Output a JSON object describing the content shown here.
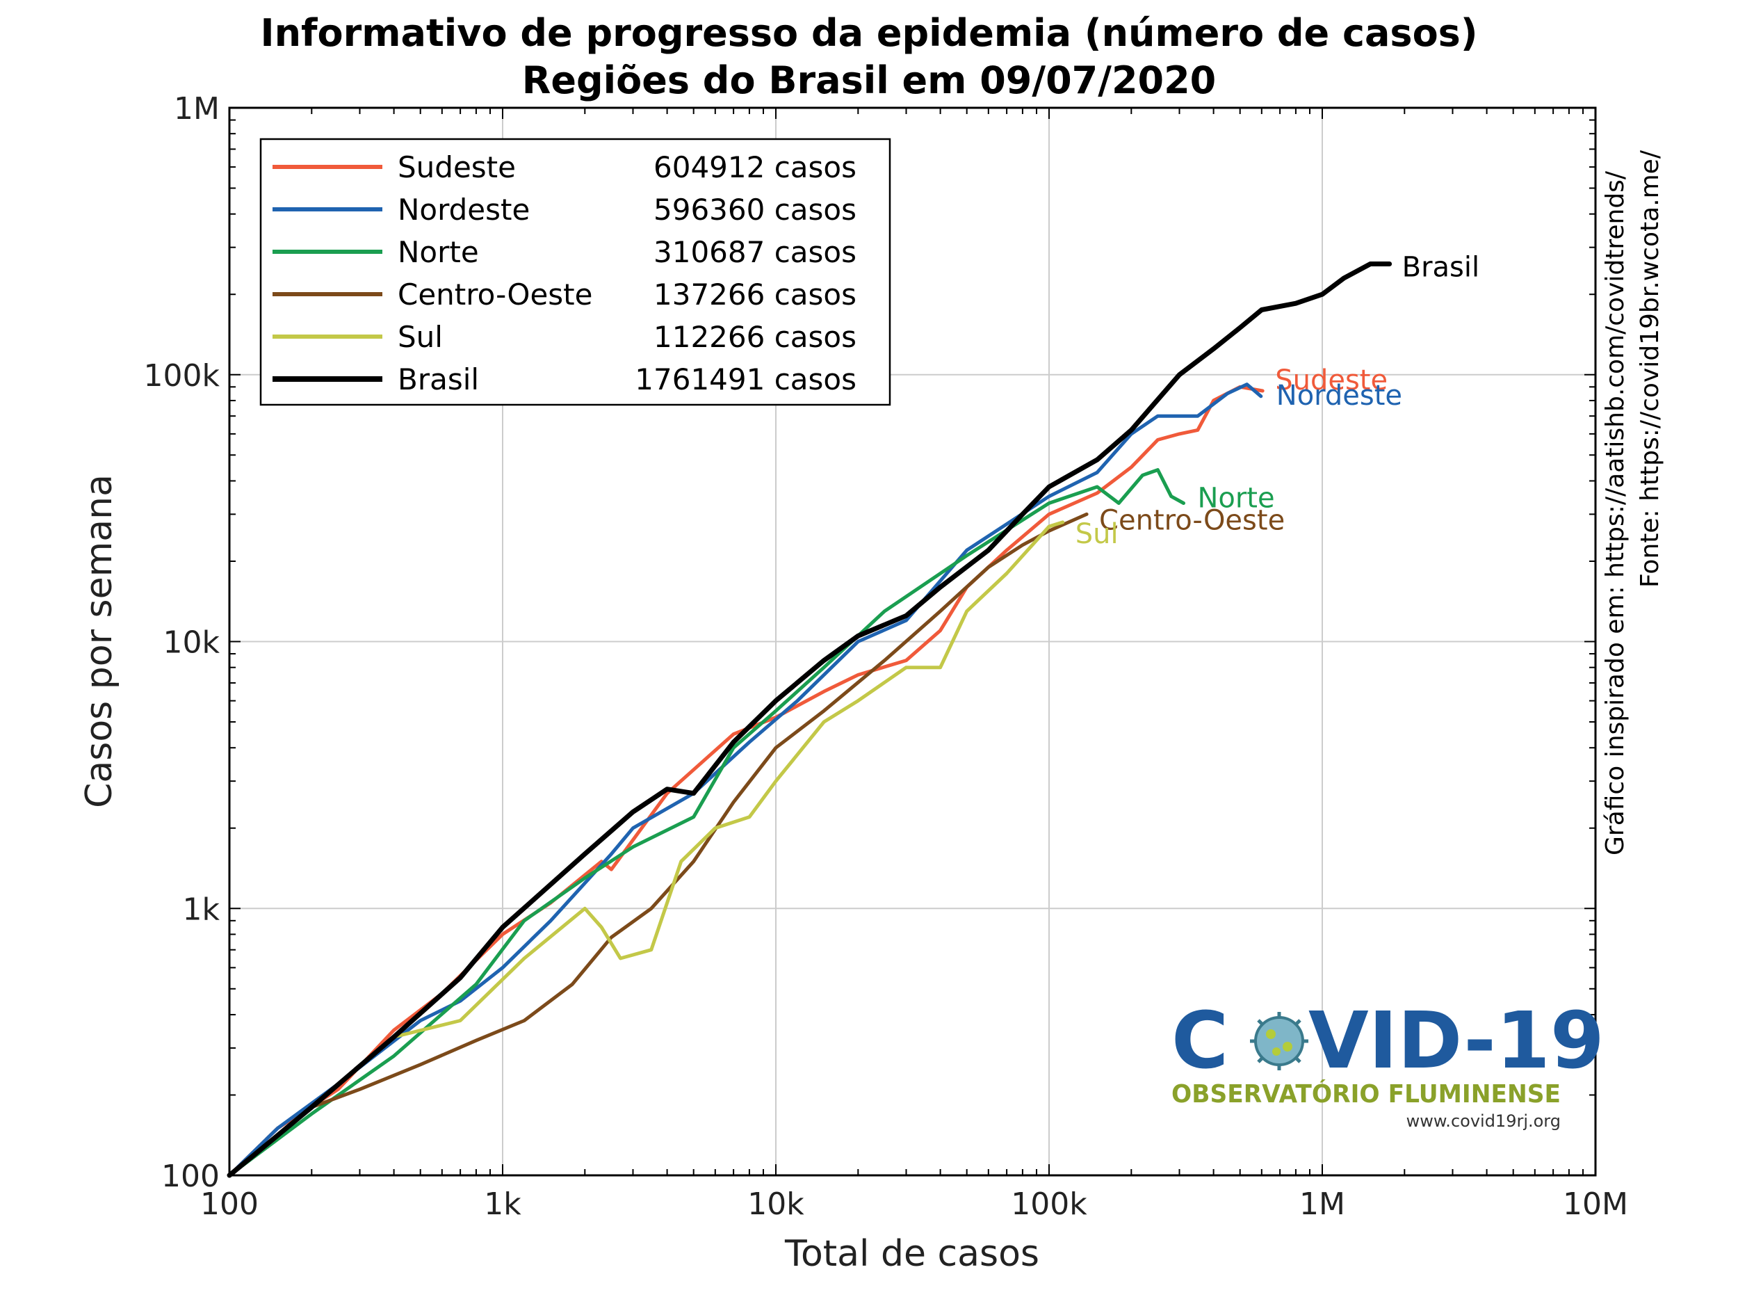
{
  "chart_data": {
    "type": "line",
    "title": "Informativo de progresso da epidemia (número de casos)",
    "subtitle": "Regiões do Brasil em 09/07/2020",
    "xlabel": "Total de casos",
    "ylabel": "Casos por semana",
    "xscale": "log",
    "yscale": "log",
    "xlim": [
      100,
      10000000
    ],
    "ylim": [
      100,
      1000000
    ],
    "x_ticks": [
      100,
      1000,
      10000,
      100000,
      1000000,
      10000000
    ],
    "x_tick_labels": [
      "100",
      "1k",
      "10k",
      "100k",
      "1M",
      "10M"
    ],
    "y_ticks": [
      100,
      1000,
      10000,
      100000,
      1000000
    ],
    "y_tick_labels": [
      "100",
      "1k",
      "10k",
      "100k",
      "1M"
    ],
    "grid": true,
    "legend_position": "top-left",
    "series": [
      {
        "name": "Sudeste",
        "total": "604912 casos",
        "color": "#f05a3a",
        "points": [
          [
            100,
            100
          ],
          [
            150,
            150
          ],
          [
            250,
            210
          ],
          [
            400,
            350
          ],
          [
            600,
            480
          ],
          [
            1000,
            800
          ],
          [
            1500,
            1050
          ],
          [
            2300,
            1500
          ],
          [
            2500,
            1400
          ],
          [
            4000,
            2700
          ],
          [
            7000,
            4500
          ],
          [
            10000,
            5200
          ],
          [
            15000,
            6500
          ],
          [
            20000,
            7500
          ],
          [
            30000,
            8500
          ],
          [
            40000,
            11000
          ],
          [
            50000,
            16000
          ],
          [
            70000,
            22000
          ],
          [
            100000,
            30000
          ],
          [
            150000,
            36000
          ],
          [
            200000,
            45000
          ],
          [
            250000,
            57000
          ],
          [
            300000,
            60000
          ],
          [
            350000,
            62000
          ],
          [
            400000,
            80000
          ],
          [
            500000,
            90000
          ],
          [
            604912,
            87000
          ]
        ]
      },
      {
        "name": "Nordeste",
        "total": "596360 casos",
        "color": "#1f63b0",
        "points": [
          [
            100,
            100
          ],
          [
            150,
            150
          ],
          [
            250,
            220
          ],
          [
            500,
            380
          ],
          [
            700,
            450
          ],
          [
            1000,
            600
          ],
          [
            1500,
            900
          ],
          [
            2500,
            1600
          ],
          [
            3000,
            2000
          ],
          [
            5000,
            2700
          ],
          [
            8000,
            4200
          ],
          [
            12000,
            6000
          ],
          [
            20000,
            10000
          ],
          [
            30000,
            12000
          ],
          [
            50000,
            22000
          ],
          [
            100000,
            35000
          ],
          [
            150000,
            43000
          ],
          [
            200000,
            60000
          ],
          [
            250000,
            70000
          ],
          [
            350000,
            70000
          ],
          [
            450000,
            85000
          ],
          [
            530000,
            92000
          ],
          [
            596360,
            83000
          ]
        ]
      },
      {
        "name": "Norte",
        "total": "310687 casos",
        "color": "#1a9e50",
        "points": [
          [
            100,
            100
          ],
          [
            200,
            170
          ],
          [
            400,
            280
          ],
          [
            800,
            520
          ],
          [
            1200,
            900
          ],
          [
            2000,
            1300
          ],
          [
            3000,
            1700
          ],
          [
            5000,
            2200
          ],
          [
            7000,
            4000
          ],
          [
            10000,
            5500
          ],
          [
            15000,
            8000
          ],
          [
            25000,
            13000
          ],
          [
            50000,
            21000
          ],
          [
            100000,
            33000
          ],
          [
            150000,
            38000
          ],
          [
            180000,
            33000
          ],
          [
            220000,
            42000
          ],
          [
            250000,
            44000
          ],
          [
            280000,
            35000
          ],
          [
            310687,
            33000
          ]
        ]
      },
      {
        "name": "Centro-Oeste",
        "total": "137266 casos",
        "color": "#7c4a1a",
        "points": [
          [
            100,
            100
          ],
          [
            200,
            180
          ],
          [
            300,
            210
          ],
          [
            500,
            260
          ],
          [
            800,
            320
          ],
          [
            1200,
            380
          ],
          [
            1800,
            520
          ],
          [
            2500,
            780
          ],
          [
            3500,
            1000
          ],
          [
            5000,
            1500
          ],
          [
            7000,
            2500
          ],
          [
            10000,
            4000
          ],
          [
            15000,
            5500
          ],
          [
            25000,
            8500
          ],
          [
            40000,
            13000
          ],
          [
            60000,
            19000
          ],
          [
            80000,
            23000
          ],
          [
            100000,
            26000
          ],
          [
            137266,
            30000
          ]
        ]
      },
      {
        "name": "Sul",
        "total": "112266 casos",
        "color": "#c3c848",
        "points": [
          [
            100,
            100
          ],
          [
            200,
            180
          ],
          [
            400,
            330
          ],
          [
            700,
            380
          ],
          [
            1200,
            650
          ],
          [
            2000,
            1000
          ],
          [
            2300,
            850
          ],
          [
            2700,
            650
          ],
          [
            3500,
            700
          ],
          [
            4500,
            1500
          ],
          [
            6000,
            2000
          ],
          [
            8000,
            2200
          ],
          [
            10000,
            3000
          ],
          [
            15000,
            5000
          ],
          [
            20000,
            6000
          ],
          [
            30000,
            8000
          ],
          [
            40000,
            8000
          ],
          [
            50000,
            13000
          ],
          [
            70000,
            18000
          ],
          [
            100000,
            27000
          ],
          [
            112266,
            28000
          ]
        ]
      },
      {
        "name": "Brasil",
        "total": "1761491 casos",
        "color": "#000000",
        "points": [
          [
            100,
            100
          ],
          [
            200,
            180
          ],
          [
            400,
            330
          ],
          [
            700,
            550
          ],
          [
            1000,
            850
          ],
          [
            2000,
            1600
          ],
          [
            3000,
            2300
          ],
          [
            4000,
            2800
          ],
          [
            5000,
            2700
          ],
          [
            7000,
            4200
          ],
          [
            10000,
            6000
          ],
          [
            15000,
            8500
          ],
          [
            20000,
            10500
          ],
          [
            30000,
            12500
          ],
          [
            40000,
            16000
          ],
          [
            60000,
            22000
          ],
          [
            80000,
            30000
          ],
          [
            100000,
            38000
          ],
          [
            150000,
            48000
          ],
          [
            200000,
            62000
          ],
          [
            300000,
            100000
          ],
          [
            400000,
            125000
          ],
          [
            500000,
            150000
          ],
          [
            600000,
            175000
          ],
          [
            800000,
            185000
          ],
          [
            1000000,
            200000
          ],
          [
            1200000,
            230000
          ],
          [
            1500000,
            260000
          ],
          [
            1761491,
            260000
          ]
        ]
      }
    ],
    "series_labels": [
      "Sudeste",
      "Nordeste",
      "Norte",
      "Centro-Oeste",
      "Sul",
      "Brasil"
    ],
    "side_text_1": "Gráfico inspirado em: https://aatishb.com/covidtrends/",
    "side_text_2": "Fonte: https://covid19br.wcota.me/"
  },
  "logo": {
    "main": "COVID-19",
    "sub": "OBSERVATÓRIO FLUMINENSE",
    "url": "www.covid19rj.org",
    "color_main": "#1f5a9e",
    "color_sub": "#8aa12a"
  }
}
